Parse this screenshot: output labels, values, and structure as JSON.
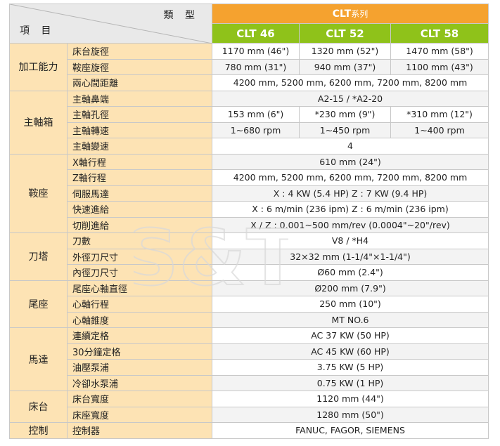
{
  "header": {
    "type_label": "類 型",
    "item_label": "項 目",
    "series_prefix": "CLT",
    "series_suffix": "系列",
    "models": [
      "CLT 46",
      "CLT 52",
      "CLT 58"
    ]
  },
  "rows": {
    "r1": {
      "cat": "加工能力",
      "item": "床台旋徑",
      "v": [
        "1170 mm (46\")",
        "1320 mm (52\")",
        "1470 mm (58\")"
      ]
    },
    "r2": {
      "item": "鞍座旋徑",
      "v": [
        "780 mm (31\")",
        "940 mm (37\")",
        "1100 mm (43\")"
      ]
    },
    "r3": {
      "item": "兩心間距離",
      "v": [
        "4200 mm, 5200 mm, 6200 mm, 7200 mm, 8200 mm"
      ]
    },
    "r4": {
      "cat": "主軸箱",
      "item": "主軸鼻端",
      "v": [
        "A2-15 / *A2-20"
      ]
    },
    "r5": {
      "item": "主軸孔徑",
      "v": [
        "153 mm (6\")",
        "*230 mm (9\")",
        "*310 mm (12\")"
      ]
    },
    "r6": {
      "item": "主軸轉速",
      "v": [
        "1~680 rpm",
        "1~450 rpm",
        "1~400 rpm"
      ]
    },
    "r7": {
      "item": "主軸變速",
      "v": [
        "4"
      ]
    },
    "r8": {
      "cat": "鞍座",
      "item": "X軸行程",
      "v": [
        "610 mm (24\")"
      ]
    },
    "r9": {
      "item": "Z軸行程",
      "v": [
        "4200 mm, 5200 mm, 6200 mm, 7200 mm, 8200 mm"
      ]
    },
    "r10": {
      "item": "伺服馬達",
      "v": [
        "X : 4 KW (5.4 HP)  Z : 7 KW (9.4 HP)"
      ]
    },
    "r11": {
      "item": "快速進給",
      "v": [
        "X : 6 m/min (236 ipm)  Z : 6 m/min (236 ipm)"
      ]
    },
    "r12": {
      "item": "切削進給",
      "v": [
        "X / Z : 0.001~500 mm/rev (0.0004\"~20\"/rev)"
      ]
    },
    "r13": {
      "cat": "刀塔",
      "item": "刀數",
      "v": [
        "V8  /  *H4"
      ]
    },
    "r14": {
      "item": "外徑刀尺寸",
      "v": [
        "32×32 mm (1-1/4\"×1-1/4\")"
      ]
    },
    "r15": {
      "item": "內徑刀尺寸",
      "v": [
        "Ø60 mm (2.4\")"
      ]
    },
    "r16": {
      "cat": "尾座",
      "item": "尾座心軸直徑",
      "v": [
        "Ø200 mm (7.9\")"
      ]
    },
    "r17": {
      "item": "心軸行程",
      "v": [
        "250 mm (10\")"
      ]
    },
    "r18": {
      "item": "心軸錐度",
      "v": [
        "MT NO.6"
      ]
    },
    "r19": {
      "cat": "馬達",
      "item": "連續定格",
      "v": [
        "AC 37 KW (50 HP)"
      ]
    },
    "r20": {
      "item": "30分鐘定格",
      "v": [
        "AC 45 KW (60 HP)"
      ]
    },
    "r21": {
      "item": "油壓泵浦",
      "v": [
        "3.75 KW (5 HP)"
      ]
    },
    "r22": {
      "item": "冷卻水泵浦",
      "v": [
        "0.75 KW (1 HP)"
      ]
    },
    "r23": {
      "cat": "床台",
      "item": "床台寬度",
      "v": [
        "1120 mm (44\")"
      ]
    },
    "r24": {
      "item": "床座寬度",
      "v": [
        "1280 mm (50\")"
      ]
    },
    "r25": {
      "cat": "控制",
      "item": "控制器",
      "v": [
        "FANUC,  FAGOR,  SIEMENS"
      ]
    }
  },
  "watermark": "S&T",
  "colors": {
    "series_bg": "#f5a22f",
    "model_bg": "#8fc21a",
    "label_bg": "#fde3b4",
    "corner_bg": "#e9e9e9"
  }
}
